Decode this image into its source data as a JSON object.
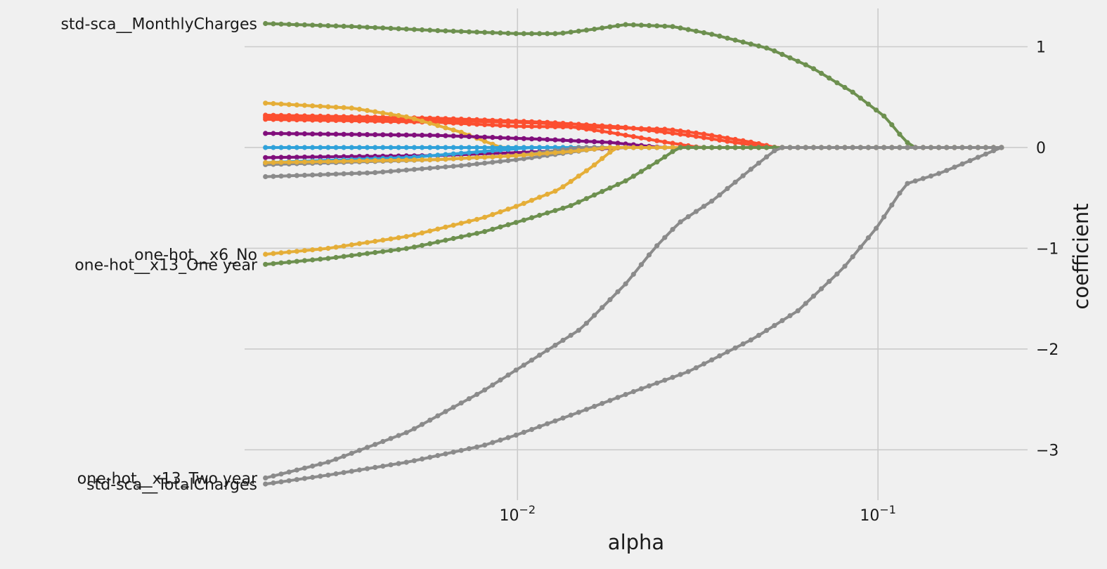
{
  "chart_data": {
    "type": "line",
    "title": "",
    "xlabel": "alpha",
    "ylabel": "coefficient",
    "x_scale": "log",
    "xlim": [
      0.00175,
      0.26
    ],
    "ylim": [
      -3.5,
      1.38
    ],
    "x_ticks": [
      {
        "value": 0.01,
        "base": "10",
        "exp": "−2"
      },
      {
        "value": 0.1,
        "base": "10",
        "exp": "−1"
      }
    ],
    "y_ticks": [
      {
        "value": 1,
        "label": "1"
      },
      {
        "value": 0,
        "label": "0"
      },
      {
        "value": -1,
        "label": "−1"
      },
      {
        "value": -2,
        "label": "−2"
      },
      {
        "value": -3,
        "label": "−3"
      }
    ],
    "grid": true,
    "y_axis_side": "right",
    "x_range": [
      0.002,
      0.22
    ],
    "n_points": 95,
    "colors": {
      "background": "#f0f0f0",
      "grid": "#cbcbcb"
    },
    "series": [
      {
        "label": "std-sca__MonthlyCharges",
        "color": "#6d904f",
        "points": [
          [
            0.002,
            1.23
          ],
          [
            0.0035,
            1.2
          ],
          [
            0.006,
            1.16
          ],
          [
            0.01,
            1.13
          ],
          [
            0.013,
            1.13
          ],
          [
            0.016,
            1.17
          ],
          [
            0.02,
            1.22
          ],
          [
            0.027,
            1.2
          ],
          [
            0.035,
            1.12
          ],
          [
            0.05,
            0.98
          ],
          [
            0.065,
            0.8
          ],
          [
            0.085,
            0.55
          ],
          [
            0.105,
            0.3
          ],
          [
            0.118,
            0.08
          ],
          [
            0.125,
            0.0
          ],
          [
            0.22,
            0.0
          ]
        ]
      },
      {
        "label": "",
        "color": "#fc4f30",
        "points": [
          [
            0.002,
            0.32
          ],
          [
            0.006,
            0.29
          ],
          [
            0.012,
            0.25
          ],
          [
            0.02,
            0.2
          ],
          [
            0.03,
            0.12
          ],
          [
            0.04,
            0.05
          ],
          [
            0.05,
            0.0
          ],
          [
            0.22,
            0.0
          ]
        ]
      },
      {
        "label": "",
        "color": "#fc4f30",
        "points": [
          [
            0.002,
            0.3
          ],
          [
            0.006,
            0.27
          ],
          [
            0.012,
            0.24
          ],
          [
            0.018,
            0.15
          ],
          [
            0.026,
            0.05
          ],
          [
            0.032,
            0.0
          ],
          [
            0.22,
            0.0
          ]
        ]
      },
      {
        "label": "",
        "color": "#fc4f30",
        "points": [
          [
            0.002,
            0.28
          ],
          [
            0.006,
            0.25
          ],
          [
            0.01,
            0.21
          ],
          [
            0.017,
            0.2
          ],
          [
            0.026,
            0.18
          ],
          [
            0.032,
            0.14
          ],
          [
            0.045,
            0.05
          ],
          [
            0.052,
            0.0
          ],
          [
            0.22,
            0.0
          ]
        ]
      },
      {
        "label": "",
        "color": "#e5ae38",
        "points": [
          [
            0.002,
            0.44
          ],
          [
            0.0035,
            0.39
          ],
          [
            0.005,
            0.3
          ],
          [
            0.007,
            0.15
          ],
          [
            0.009,
            0.0
          ],
          [
            0.22,
            0.0
          ]
        ]
      },
      {
        "label": "",
        "color": "#810f7c",
        "points": [
          [
            0.002,
            0.14
          ],
          [
            0.006,
            0.12
          ],
          [
            0.012,
            0.08
          ],
          [
            0.018,
            0.05
          ],
          [
            0.025,
            0.0
          ],
          [
            0.22,
            0.0
          ]
        ]
      },
      {
        "label": "",
        "color": "#810f7c",
        "points": [
          [
            0.002,
            -0.1
          ],
          [
            0.006,
            -0.08
          ],
          [
            0.012,
            -0.04
          ],
          [
            0.02,
            0.0
          ],
          [
            0.22,
            0.0
          ]
        ]
      },
      {
        "label": "",
        "color": "#30a2da",
        "points": [
          [
            0.002,
            0.0
          ],
          [
            0.005,
            0.0
          ],
          [
            0.008,
            0.0
          ],
          [
            0.22,
            0.0
          ]
        ]
      },
      {
        "label": "",
        "color": "#30a2da",
        "points": [
          [
            0.002,
            -0.15
          ],
          [
            0.005,
            -0.1
          ],
          [
            0.008,
            -0.04
          ],
          [
            0.011,
            0.0
          ],
          [
            0.22,
            0.0
          ]
        ]
      },
      {
        "label": "",
        "color": "#8b8b8b",
        "points": [
          [
            0.002,
            -0.17
          ],
          [
            0.006,
            -0.12
          ],
          [
            0.01,
            -0.08
          ],
          [
            0.015,
            0.0
          ],
          [
            0.22,
            0.0
          ]
        ]
      },
      {
        "label": "",
        "color": "#8b8b8b",
        "points": [
          [
            0.002,
            -0.29
          ],
          [
            0.004,
            -0.25
          ],
          [
            0.007,
            -0.18
          ],
          [
            0.01,
            -0.12
          ],
          [
            0.016,
            -0.02
          ],
          [
            0.018,
            0.0
          ],
          [
            0.22,
            0.0
          ]
        ]
      },
      {
        "label": "",
        "color": "#e5ae38",
        "points": [
          [
            0.002,
            -0.15
          ],
          [
            0.006,
            -0.12
          ],
          [
            0.01,
            -0.08
          ],
          [
            0.014,
            -0.04
          ],
          [
            0.018,
            0.0
          ],
          [
            0.22,
            0.0
          ]
        ]
      },
      {
        "label": "one-hot__x6_No",
        "color": "#e5ae38",
        "points": [
          [
            0.002,
            -1.06
          ],
          [
            0.003,
            -1.0
          ],
          [
            0.005,
            -0.88
          ],
          [
            0.008,
            -0.7
          ],
          [
            0.01,
            -0.58
          ],
          [
            0.013,
            -0.42
          ],
          [
            0.016,
            -0.2
          ],
          [
            0.018,
            -0.05
          ],
          [
            0.019,
            0.0
          ],
          [
            0.22,
            0.0
          ]
        ]
      },
      {
        "label": "one-hot__x13_One year",
        "color": "#6d904f",
        "points": [
          [
            0.002,
            -1.16
          ],
          [
            0.003,
            -1.1
          ],
          [
            0.005,
            -1.0
          ],
          [
            0.008,
            -0.84
          ],
          [
            0.01,
            -0.74
          ],
          [
            0.014,
            -0.58
          ],
          [
            0.02,
            -0.33
          ],
          [
            0.025,
            -0.12
          ],
          [
            0.028,
            0.0
          ],
          [
            0.22,
            0.0
          ]
        ]
      },
      {
        "label": "one-hot__x13_Two year",
        "color": "#8b8b8b",
        "points": [
          [
            0.002,
            -3.28
          ],
          [
            0.003,
            -3.12
          ],
          [
            0.005,
            -2.82
          ],
          [
            0.008,
            -2.42
          ],
          [
            0.01,
            -2.2
          ],
          [
            0.015,
            -1.8
          ],
          [
            0.02,
            -1.35
          ],
          [
            0.024,
            -1.0
          ],
          [
            0.028,
            -0.75
          ],
          [
            0.035,
            -0.52
          ],
          [
            0.045,
            -0.2
          ],
          [
            0.053,
            0.0
          ],
          [
            0.22,
            0.0
          ]
        ]
      },
      {
        "label": "std-sca__TotalCharges",
        "color": "#8b8b8b",
        "points": [
          [
            0.002,
            -3.34
          ],
          [
            0.003,
            -3.25
          ],
          [
            0.005,
            -3.12
          ],
          [
            0.008,
            -2.96
          ],
          [
            0.01,
            -2.85
          ],
          [
            0.015,
            -2.62
          ],
          [
            0.02,
            -2.45
          ],
          [
            0.03,
            -2.22
          ],
          [
            0.045,
            -1.9
          ],
          [
            0.06,
            -1.62
          ],
          [
            0.08,
            -1.2
          ],
          [
            0.1,
            -0.78
          ],
          [
            0.115,
            -0.45
          ],
          [
            0.12,
            -0.36
          ],
          [
            0.15,
            -0.25
          ],
          [
            0.22,
            0.0
          ]
        ]
      }
    ]
  }
}
